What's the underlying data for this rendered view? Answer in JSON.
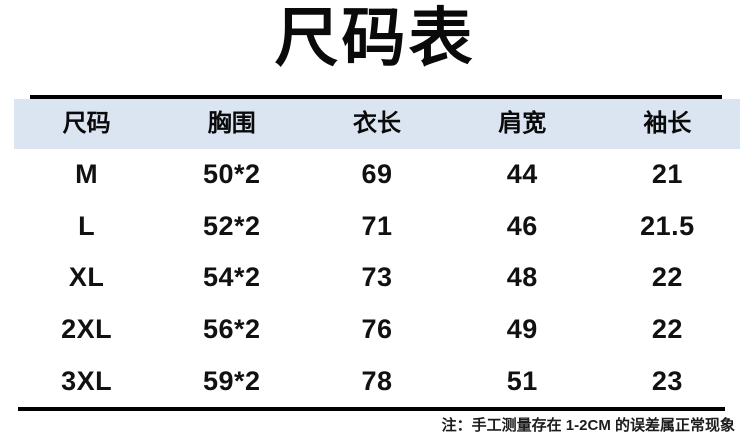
{
  "title": "尺码表",
  "table": {
    "headers": [
      "尺码",
      "胸围",
      "衣长",
      "肩宽",
      "袖长"
    ],
    "rows": [
      [
        "M",
        "50*2",
        "69",
        "44",
        "21"
      ],
      [
        "L",
        "52*2",
        "71",
        "46",
        "21.5"
      ],
      [
        "XL",
        "54*2",
        "73",
        "48",
        "22"
      ],
      [
        "2XL",
        "56*2",
        "76",
        "49",
        "22"
      ],
      [
        "3XL",
        "59*2",
        "78",
        "51",
        "23"
      ]
    ]
  },
  "footnote": "注：手工测量存在 1-2CM 的误差属正常现象",
  "colors": {
    "header_bg": "#dbe5f1",
    "rule": "#000000",
    "text": "#0a0a0a",
    "background": "#ffffff"
  }
}
